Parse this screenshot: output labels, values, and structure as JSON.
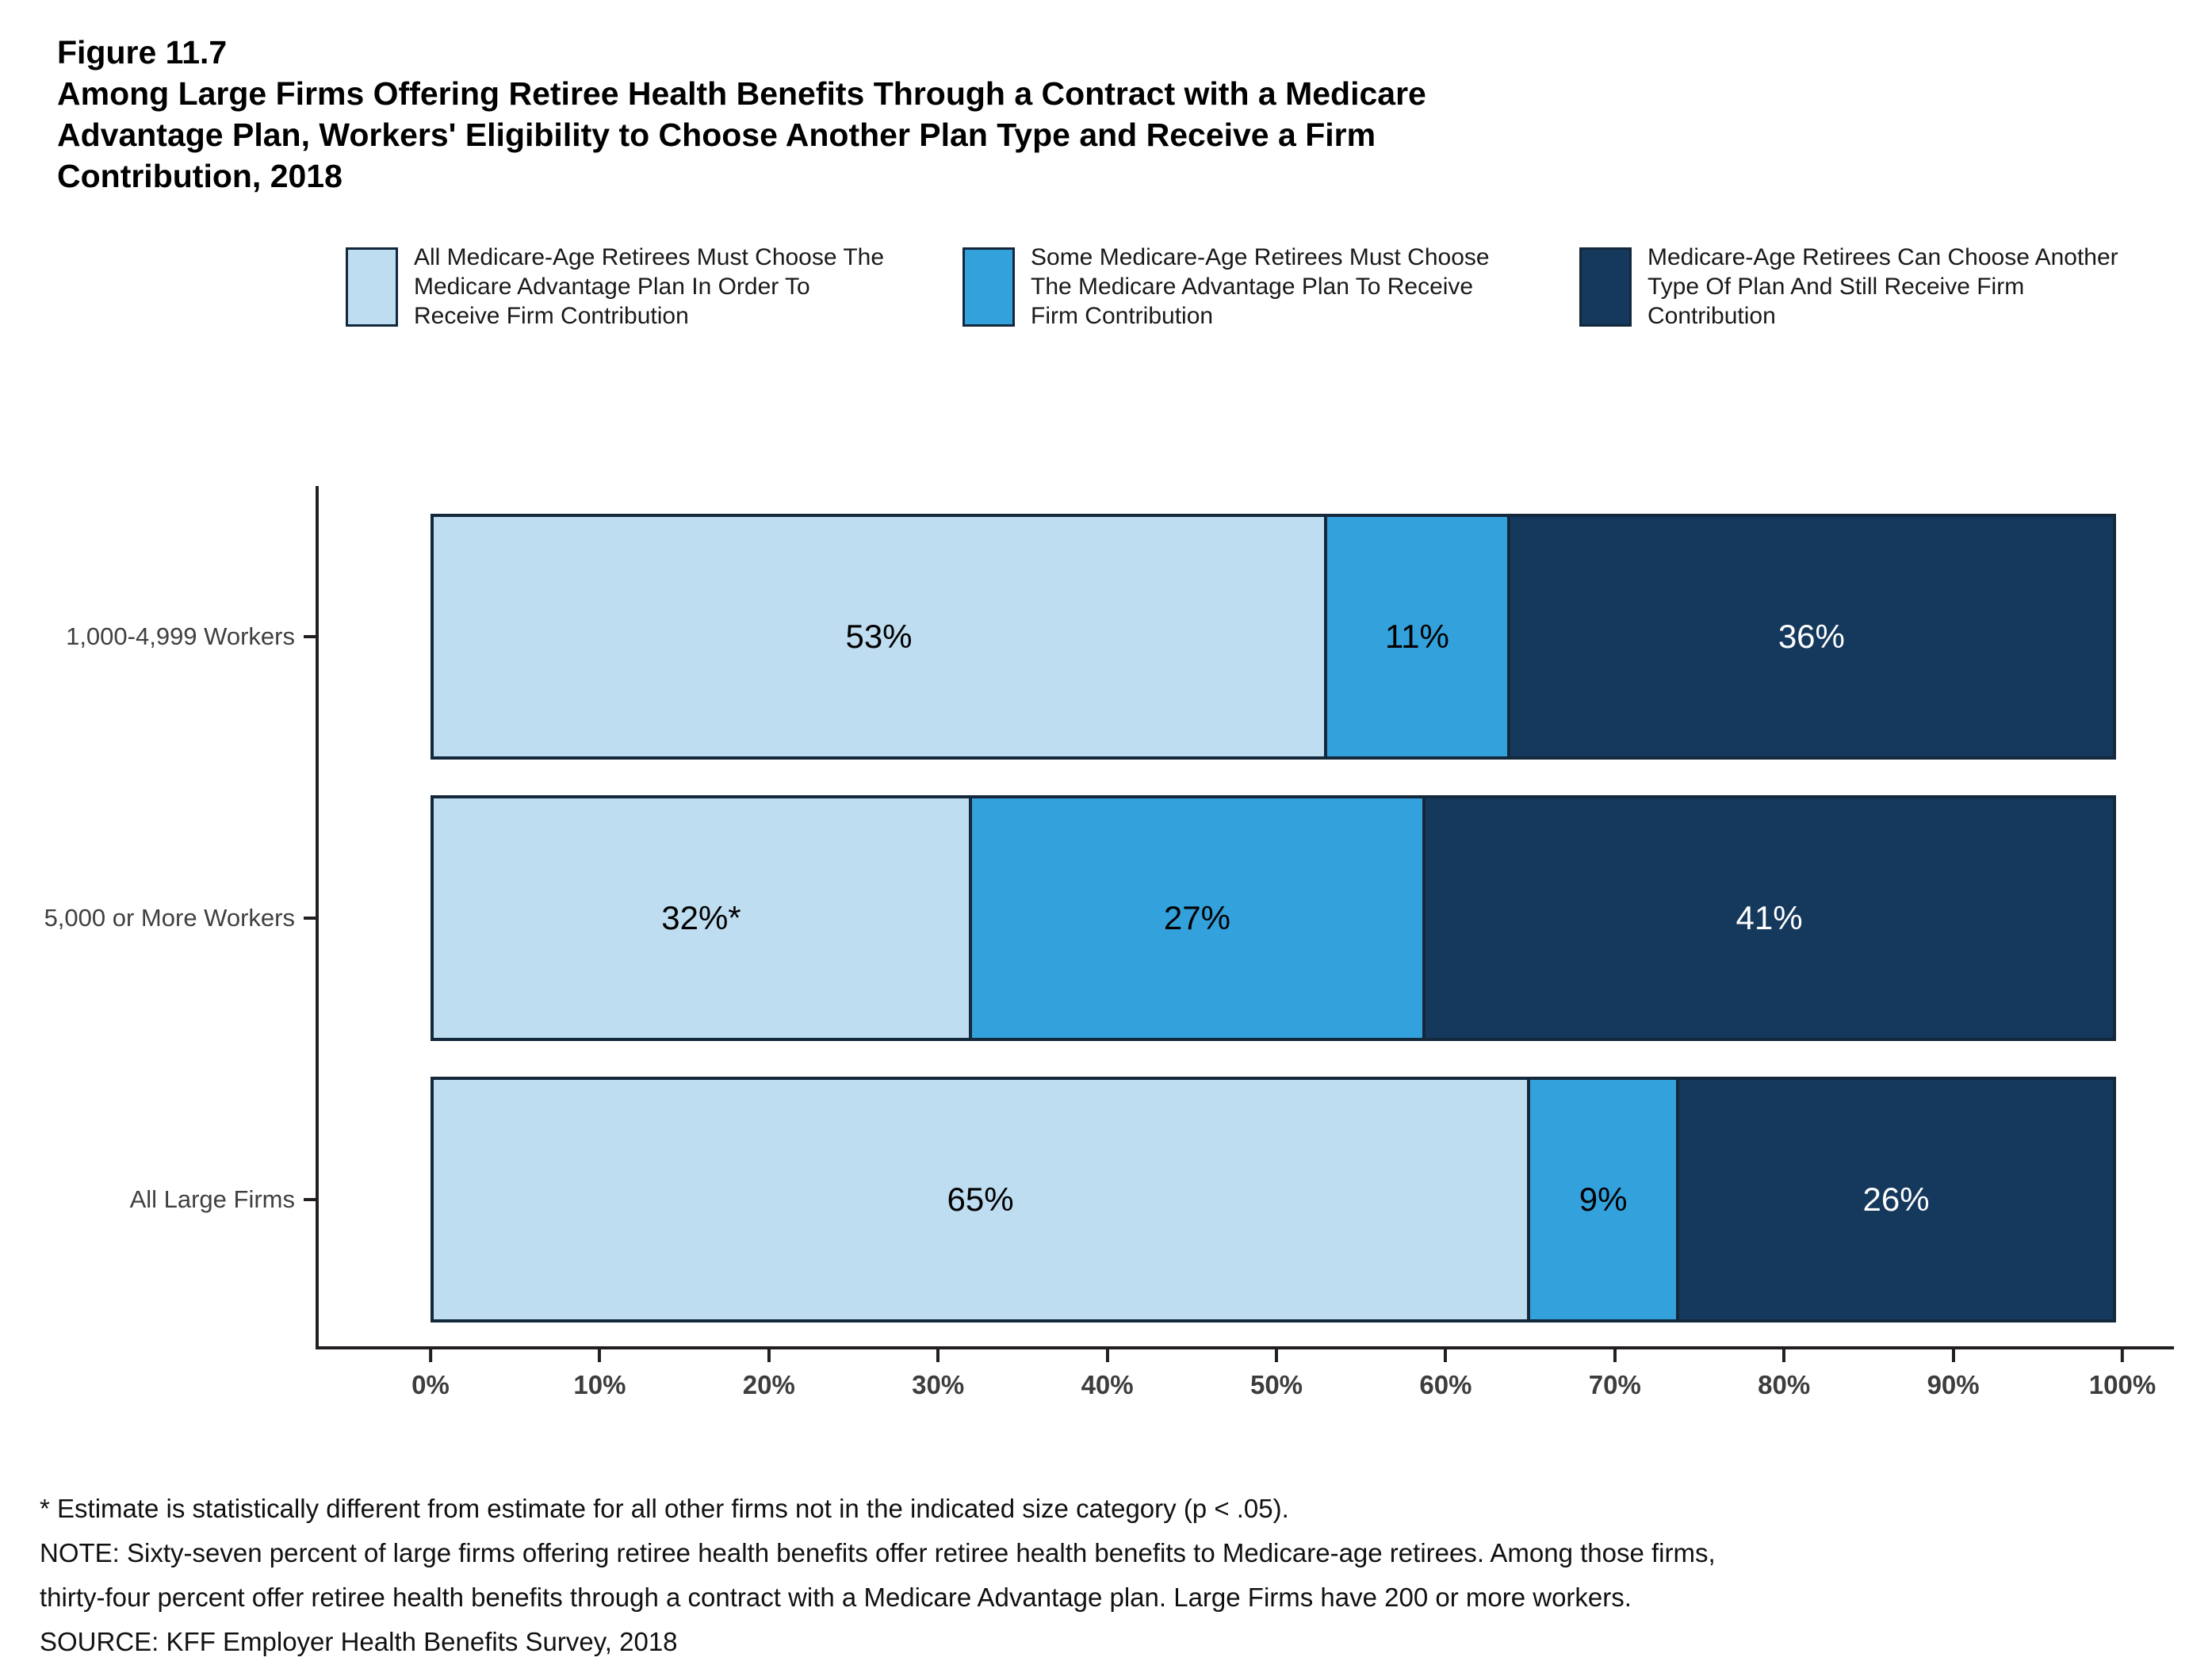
{
  "header": {
    "figure_number": "Figure 11.7",
    "title_lines": [
      "Among Large Firms Offering Retiree Health Benefits Through a Contract with a Medicare",
      "Advantage Plan, Workers' Eligibility to Choose Another Plan Type and Receive a Firm",
      "Contribution, 2018"
    ]
  },
  "chart_data": {
    "type": "bar",
    "orientation": "horizontal",
    "stacked": true,
    "unit": "%",
    "xlim": [
      0,
      100
    ],
    "x_ticks": [
      "0%",
      "10%",
      "20%",
      "30%",
      "40%",
      "50%",
      "60%",
      "70%",
      "80%",
      "90%",
      "100%"
    ],
    "categories": [
      "1,000-4,999 Workers",
      "5,000 or More Workers",
      "All Large Firms"
    ],
    "series": [
      {
        "name": "All Medicare-Age Retirees Must Choose The Medicare Advantage Plan In Order To Receive Firm Contribution",
        "color": "#BEDDF1",
        "label_color": "#000000",
        "values": [
          53,
          32,
          65
        ],
        "value_labels": [
          "53%",
          "32%*",
          "65%"
        ]
      },
      {
        "name": "Some Medicare-Age Retirees Must Choose The Medicare Advantage Plan To Receive Firm Contribution",
        "color": "#33A1DC",
        "label_color": "#000000",
        "values": [
          11,
          27,
          9
        ],
        "value_labels": [
          "11%",
          "27%",
          "9%"
        ]
      },
      {
        "name": "Medicare-Age Retirees Can Choose Another Type Of Plan And Still Receive Firm Contribution",
        "color": "#15385D",
        "label_color": "#FFFFFF",
        "values": [
          36,
          41,
          26
        ],
        "value_labels": [
          "36%",
          "41%",
          "26%"
        ]
      }
    ],
    "bar_border_color": "#14283C",
    "legend_position": "top",
    "grid": false
  },
  "footnotes": [
    "* Estimate is statistically different from estimate for all other firms not in the indicated size category (p < .05).",
    "NOTE: Sixty-seven percent of large firms offering retiree health benefits offer retiree health benefits to Medicare-age retirees. Among those firms,",
    "thirty-four percent offer retiree health benefits through a contract with a Medicare Advantage plan. Large Firms have 200 or more workers.",
    "SOURCE: KFF Employer Health Benefits Survey, 2018"
  ]
}
